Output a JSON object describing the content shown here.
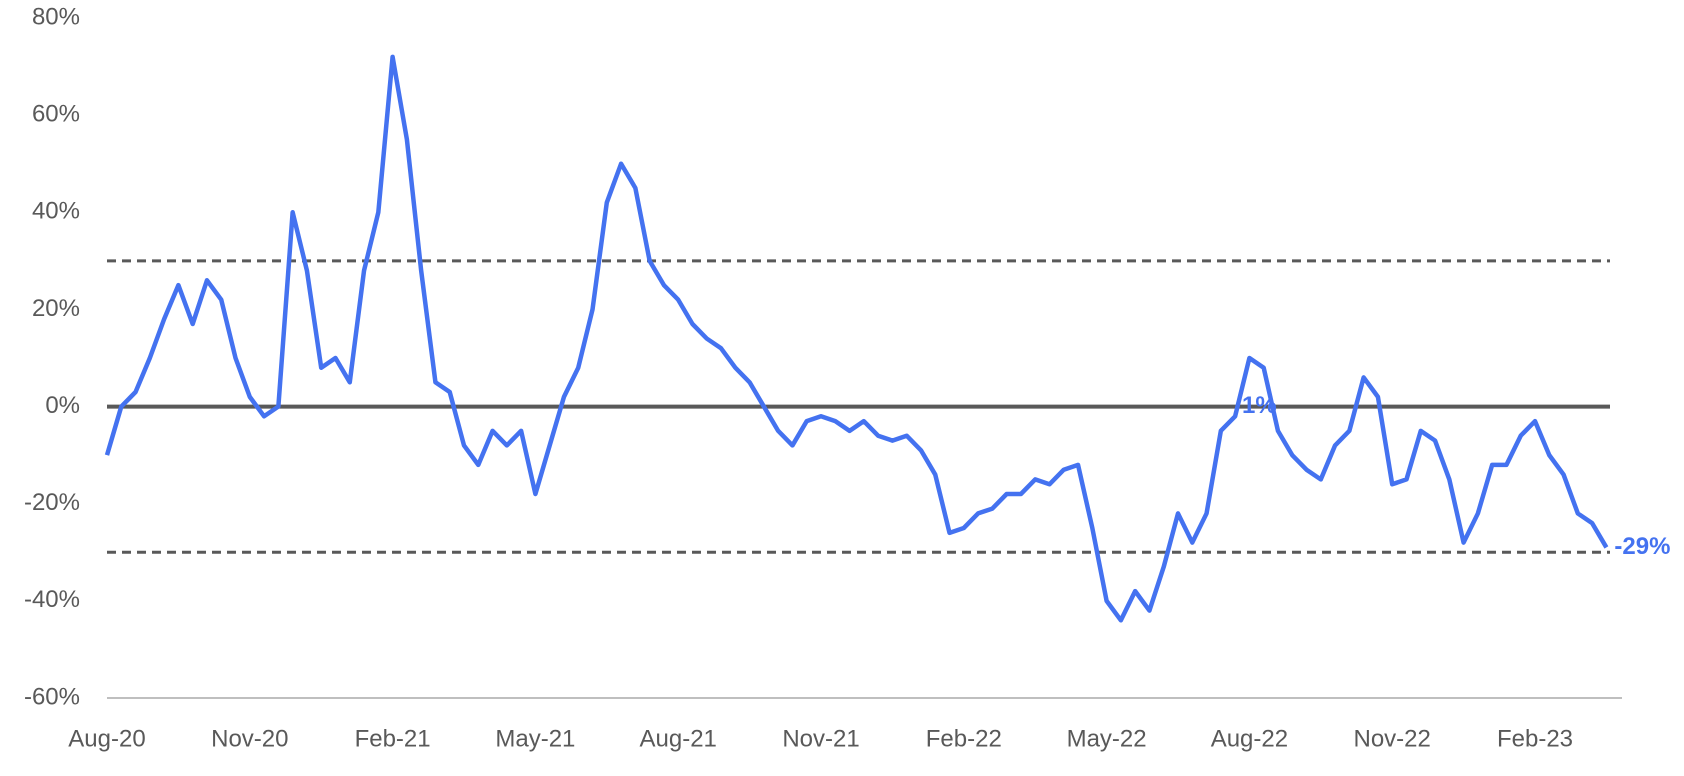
{
  "chart_data": {
    "type": "line",
    "categories": [
      "Aug-20",
      null,
      null,
      null,
      null,
      null,
      null,
      null,
      null,
      null,
      "Nov-20",
      null,
      null,
      null,
      null,
      null,
      null,
      null,
      null,
      null,
      "Feb-21",
      null,
      null,
      null,
      null,
      null,
      null,
      null,
      null,
      null,
      "May-21",
      null,
      null,
      null,
      null,
      null,
      null,
      null,
      null,
      null,
      "Aug-21",
      null,
      null,
      null,
      null,
      null,
      null,
      null,
      null,
      null,
      "Nov-21",
      null,
      null,
      null,
      null,
      null,
      null,
      null,
      null,
      null,
      "Feb-22",
      null,
      null,
      null,
      null,
      null,
      null,
      null,
      null,
      null,
      "May-22",
      null,
      null,
      null,
      null,
      null,
      null,
      null,
      null,
      null,
      "Aug-22",
      null,
      null,
      null,
      null,
      null,
      null,
      null,
      null,
      null,
      "Nov-22",
      null,
      null,
      null,
      null,
      null,
      null,
      null,
      null,
      null,
      "Feb-23",
      null,
      null,
      null,
      null,
      null
    ],
    "series": [
      {
        "color": "#4472f0",
        "values": [
          -10,
          0,
          3,
          10,
          18,
          25,
          17,
          26,
          22,
          10,
          2,
          -2,
          0,
          40,
          28,
          8,
          10,
          5,
          28,
          40,
          72,
          55,
          28,
          5,
          3,
          -8,
          -12,
          -5,
          -8,
          -5,
          -18,
          -8,
          2,
          8,
          20,
          42,
          50,
          45,
          30,
          25,
          22,
          17,
          14,
          12,
          8,
          5,
          0,
          -5,
          -8,
          -3,
          -2,
          -3,
          -5,
          -3,
          -6,
          -7,
          -6,
          -9,
          -14,
          -26,
          -25,
          -22,
          -21,
          -18,
          -18,
          -15,
          -16,
          -13,
          -12,
          -25,
          -40,
          -44,
          -38,
          -42,
          -33,
          -22,
          -28,
          -22,
          -5,
          -2,
          10,
          8,
          -5,
          -10,
          -13,
          -15,
          -8,
          -5,
          6,
          2,
          -16,
          -15,
          -5,
          -7,
          -15,
          -28,
          -22,
          -12,
          -12,
          -6,
          -3,
          -10,
          -14,
          -22,
          -24,
          -29
        ]
      }
    ],
    "ylim": [
      -60,
      80
    ],
    "yticks": [
      {
        "value": -60,
        "label": "-60%"
      },
      {
        "value": -40,
        "label": "-40%"
      },
      {
        "value": -20,
        "label": "-20%"
      },
      {
        "value": 0,
        "label": "0%"
      },
      {
        "value": 20,
        "label": "20%"
      },
      {
        "value": 40,
        "label": "40%"
      },
      {
        "value": 60,
        "label": "60%"
      },
      {
        "value": 80,
        "label": "80%"
      }
    ],
    "reference_lines": [
      {
        "value": 30,
        "style": "dashed"
      },
      {
        "value": -30,
        "style": "dashed"
      },
      {
        "value": 0,
        "style": "solid"
      }
    ],
    "annotations": [
      "1%",
      "-29%"
    ]
  }
}
